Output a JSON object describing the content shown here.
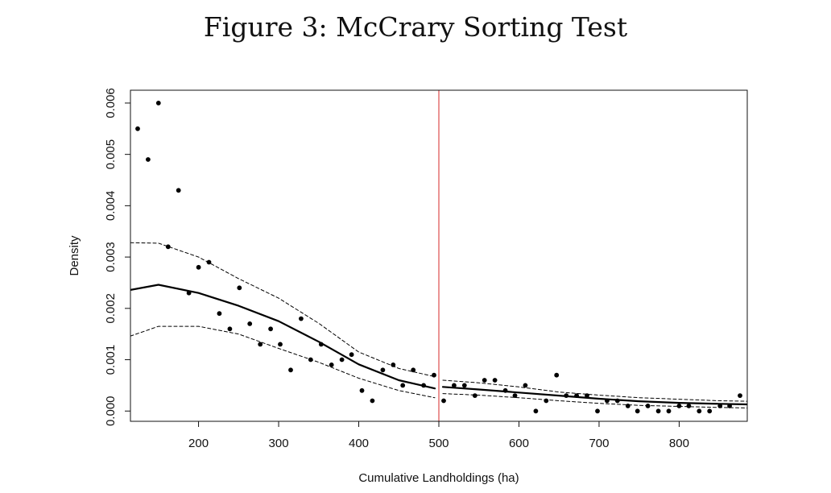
{
  "figure": {
    "title": "Figure 3: McCrary Sorting Test"
  },
  "chart_data": {
    "type": "scatter",
    "title": "Figure 3: McCrary Sorting Test",
    "xlabel": "Cumulative Landholdings (ha)",
    "ylabel": "Density",
    "xlim": [
      115,
      885
    ],
    "ylim": [
      -0.0002,
      0.00625
    ],
    "x_ticks": [
      200,
      300,
      400,
      500,
      600,
      700,
      800
    ],
    "x_tick_labels": [
      "200",
      "300",
      "400",
      "500",
      "600",
      "700",
      "800"
    ],
    "y_ticks": [
      0.0,
      0.001,
      0.002,
      0.003,
      0.004,
      0.005,
      0.006
    ],
    "y_tick_labels": [
      "0.000",
      "0.001",
      "0.002",
      "0.003",
      "0.004",
      "0.005",
      "0.006"
    ],
    "grid": false,
    "cutoff": {
      "x": 500,
      "color": "#e05a5a"
    },
    "points": [
      {
        "x": 124,
        "y": 0.0055
      },
      {
        "x": 137,
        "y": 0.0049
      },
      {
        "x": 150,
        "y": 0.006
      },
      {
        "x": 162,
        "y": 0.0032
      },
      {
        "x": 175,
        "y": 0.0043
      },
      {
        "x": 188,
        "y": 0.0023
      },
      {
        "x": 200,
        "y": 0.0028
      },
      {
        "x": 213,
        "y": 0.0029
      },
      {
        "x": 226,
        "y": 0.0019
      },
      {
        "x": 239,
        "y": 0.0016
      },
      {
        "x": 251,
        "y": 0.0024
      },
      {
        "x": 264,
        "y": 0.0017
      },
      {
        "x": 277,
        "y": 0.0013
      },
      {
        "x": 290,
        "y": 0.0016
      },
      {
        "x": 302,
        "y": 0.0013
      },
      {
        "x": 315,
        "y": 0.0008
      },
      {
        "x": 328,
        "y": 0.0018
      },
      {
        "x": 340,
        "y": 0.001
      },
      {
        "x": 353,
        "y": 0.0013
      },
      {
        "x": 366,
        "y": 0.0009
      },
      {
        "x": 379,
        "y": 0.001
      },
      {
        "x": 391,
        "y": 0.0011
      },
      {
        "x": 404,
        "y": 0.0004
      },
      {
        "x": 417,
        "y": 0.0002
      },
      {
        "x": 430,
        "y": 0.0008
      },
      {
        "x": 443,
        "y": 0.0009
      },
      {
        "x": 455,
        "y": 0.0005
      },
      {
        "x": 468,
        "y": 0.0008
      },
      {
        "x": 481,
        "y": 0.0005
      },
      {
        "x": 494,
        "y": 0.0007
      },
      {
        "x": 506,
        "y": 0.0002
      },
      {
        "x": 519,
        "y": 0.0005
      },
      {
        "x": 532,
        "y": 0.0005
      },
      {
        "x": 545,
        "y": 0.0003
      },
      {
        "x": 557,
        "y": 0.0006
      },
      {
        "x": 570,
        "y": 0.0006
      },
      {
        "x": 583,
        "y": 0.0004
      },
      {
        "x": 595,
        "y": 0.0003
      },
      {
        "x": 608,
        "y": 0.0005
      },
      {
        "x": 621,
        "y": 0.0
      },
      {
        "x": 634,
        "y": 0.0002
      },
      {
        "x": 647,
        "y": 0.0007
      },
      {
        "x": 659,
        "y": 0.0003
      },
      {
        "x": 672,
        "y": 0.0003
      },
      {
        "x": 685,
        "y": 0.0003
      },
      {
        "x": 698,
        "y": 0.0
      },
      {
        "x": 710,
        "y": 0.0002
      },
      {
        "x": 723,
        "y": 0.0002
      },
      {
        "x": 736,
        "y": 0.0001
      },
      {
        "x": 748,
        "y": 0.0
      },
      {
        "x": 761,
        "y": 0.0001
      },
      {
        "x": 774,
        "y": 0.0
      },
      {
        "x": 787,
        "y": 0.0
      },
      {
        "x": 800,
        "y": 0.0001
      },
      {
        "x": 812,
        "y": 0.0001
      },
      {
        "x": 825,
        "y": 0.0
      },
      {
        "x": 838,
        "y": 0.0
      },
      {
        "x": 851,
        "y": 0.0001
      },
      {
        "x": 863,
        "y": 0.0001
      },
      {
        "x": 876,
        "y": 0.0003
      }
    ],
    "series": [
      {
        "role": "fit-left",
        "style": "solid",
        "x": [
          115,
          150,
          200,
          250,
          300,
          350,
          400,
          450,
          495
        ],
        "y": [
          0.00236,
          0.00246,
          0.0023,
          0.00205,
          0.00175,
          0.00135,
          0.00091,
          0.0006,
          0.00044
        ]
      },
      {
        "role": "ci-upper-left",
        "style": "dashed",
        "x": [
          115,
          150,
          200,
          250,
          300,
          350,
          400,
          450,
          495
        ],
        "y": [
          0.00328,
          0.00327,
          0.003,
          0.00258,
          0.0022,
          0.00171,
          0.00115,
          0.00083,
          0.00067
        ]
      },
      {
        "role": "ci-lower-left",
        "style": "dashed",
        "x": [
          115,
          150,
          200,
          250,
          300,
          350,
          400,
          450,
          495
        ],
        "y": [
          0.00146,
          0.00165,
          0.00165,
          0.0015,
          0.00122,
          0.00095,
          0.00064,
          0.0004,
          0.00026
        ]
      },
      {
        "role": "fit-right",
        "style": "solid",
        "x": [
          505,
          550,
          600,
          650,
          700,
          750,
          800,
          850,
          885
        ],
        "y": [
          0.00047,
          0.00042,
          0.00036,
          0.0003,
          0.00024,
          0.00019,
          0.00016,
          0.00014,
          0.00013
        ]
      },
      {
        "role": "ci-upper-right",
        "style": "dashed",
        "x": [
          505,
          550,
          600,
          650,
          700,
          750,
          800,
          850,
          885
        ],
        "y": [
          0.0006,
          0.00055,
          0.00047,
          0.00037,
          0.00031,
          0.00026,
          0.00023,
          0.0002,
          0.00019
        ]
      },
      {
        "role": "ci-lower-right",
        "style": "dashed",
        "x": [
          505,
          550,
          600,
          650,
          700,
          750,
          800,
          850,
          885
        ],
        "y": [
          0.00034,
          0.00031,
          0.00026,
          0.0002,
          0.00015,
          0.00011,
          9e-05,
          7e-05,
          6e-05
        ]
      }
    ]
  }
}
